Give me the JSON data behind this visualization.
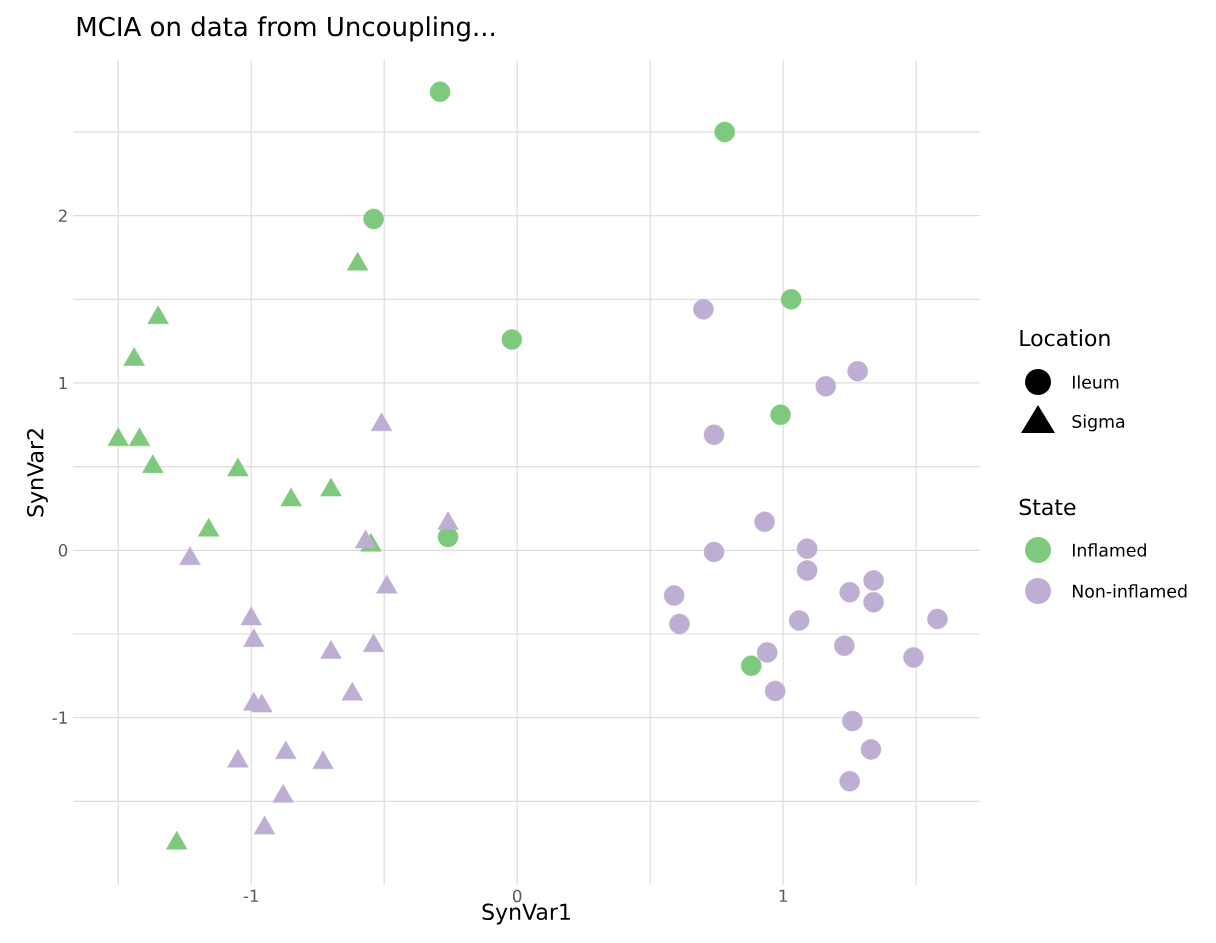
{
  "chart_data": {
    "type": "scatter",
    "title": "MCIA on data from Uncoupling...",
    "xlabel": "SynVar1",
    "ylabel": "SynVar2",
    "xlim": [
      -1.67,
      1.74
    ],
    "ylim": [
      -2.0,
      2.93
    ],
    "xticks": [
      {
        "value": -1.5,
        "label": null
      },
      -1,
      {
        "value": -0.5,
        "label": null
      },
      0,
      {
        "value": 0.5,
        "label": null
      },
      1,
      {
        "value": 1.5,
        "label": null
      }
    ],
    "yticks": [
      {
        "value": -1.5,
        "label": null
      },
      -1,
      {
        "value": -0.5,
        "label": null
      },
      0,
      {
        "value": 0.5,
        "label": null
      },
      1,
      {
        "value": 1.5,
        "label": null
      },
      2,
      {
        "value": 2.5,
        "label": null
      }
    ],
    "grid": true,
    "legend": "right",
    "legend_title": "State",
    "annotations": [
      "Location",
      "Ileum",
      "Sigma"
    ],
    "series": [
      {
        "name": "Inflamed",
        "color": "#7fc97f",
        "marker": "circle",
        "x": [
          -0.29,
          0.78,
          -0.54,
          -0.02,
          1.03,
          0.99,
          -0.26,
          0.88
        ],
        "values": [
          2.74,
          2.5,
          1.98,
          1.26,
          1.5,
          0.81,
          0.08,
          -0.69
        ]
      },
      {
        "color": "#7fc97f",
        "marker": "triangle",
        "x": [
          -0.6,
          -1.35,
          -1.44,
          -1.5,
          -1.42,
          -1.37,
          -1.05,
          -1.16,
          -0.85,
          -0.7,
          -0.55,
          -1.28
        ],
        "values": [
          1.71,
          1.39,
          1.14,
          0.66,
          0.66,
          0.5,
          0.48,
          0.12,
          0.3,
          0.36,
          0.03,
          -1.75
        ]
      },
      {
        "name": "Non-inflamed",
        "color": "#beaed4",
        "marker": "circle",
        "x": [
          0.7,
          1.28,
          1.16,
          0.74,
          0.93,
          0.74,
          1.09,
          1.09,
          0.59,
          0.61,
          1.25,
          1.34,
          1.34,
          1.06,
          1.58,
          1.23,
          0.94,
          1.49,
          0.97,
          1.26,
          1.33,
          1.25
        ],
        "values": [
          1.44,
          1.07,
          0.98,
          0.69,
          0.17,
          -0.01,
          0.01,
          -0.12,
          -0.27,
          -0.44,
          -0.25,
          -0.18,
          -0.31,
          -0.42,
          -0.41,
          -0.57,
          -0.61,
          -0.64,
          -0.84,
          -1.02,
          -1.19,
          -1.38
        ]
      },
      {
        "color": "#beaed4",
        "marker": "triangle",
        "x": [
          -0.51,
          -0.26,
          -1.23,
          -0.57,
          -0.49,
          -1.0,
          -0.99,
          -0.54,
          -0.7,
          -0.62,
          -0.99,
          -0.96,
          -1.05,
          -0.87,
          -0.73,
          -0.88,
          -0.95
        ],
        "values": [
          0.75,
          0.16,
          -0.05,
          0.05,
          -0.22,
          -0.41,
          -0.54,
          -0.57,
          -0.61,
          -0.86,
          -0.92,
          -0.93,
          -1.26,
          -1.21,
          -1.27,
          -1.47,
          -1.66
        ]
      }
    ]
  }
}
